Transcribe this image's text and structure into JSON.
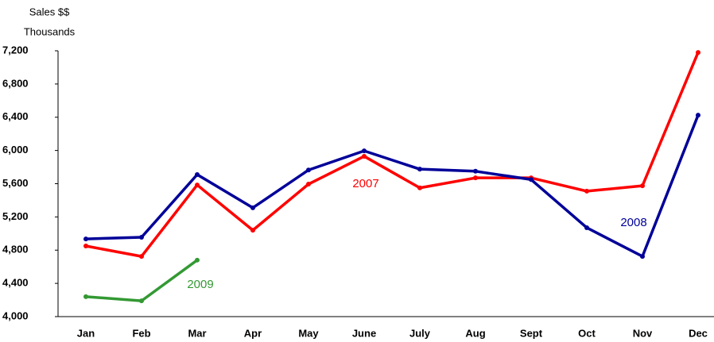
{
  "chart_data": {
    "type": "line",
    "y_label": [
      "Sales $$",
      "Thousands"
    ],
    "categories": [
      "Jan",
      "Feb",
      "Mar",
      "Apr",
      "May",
      "June",
      "July",
      "Aug",
      "Sept",
      "Oct",
      "Nov",
      "Dec"
    ],
    "series": [
      {
        "name": "2007",
        "color": "#ff0000",
        "values": [
          4850,
          4725,
          5585,
          5040,
          5595,
          5930,
          5550,
          5670,
          5670,
          5510,
          5575,
          7180
        ]
      },
      {
        "name": "2008",
        "color": "#000099",
        "values": [
          4935,
          4955,
          5710,
          5310,
          5765,
          5995,
          5775,
          5750,
          5650,
          5070,
          4725,
          6425
        ]
      },
      {
        "name": "2009",
        "color": "#339933",
        "values": [
          4240,
          4190,
          4680,
          null,
          null,
          null,
          null,
          null,
          null,
          null,
          null,
          null
        ]
      }
    ],
    "ylim": [
      4000,
      7200
    ],
    "yticks": [
      {
        "value": 4000,
        "label": "4,000"
      },
      {
        "value": 4400,
        "label": "4,400"
      },
      {
        "value": 4800,
        "label": "4,800"
      },
      {
        "value": 5200,
        "label": "5,200"
      },
      {
        "value": 5600,
        "label": "5,600"
      },
      {
        "value": 6000,
        "label": "6,000"
      },
      {
        "value": 6400,
        "label": "6,400"
      },
      {
        "value": 6800,
        "label": "6,800"
      },
      {
        "value": 7200,
        "label": "7,200"
      }
    ],
    "grid": false
  }
}
